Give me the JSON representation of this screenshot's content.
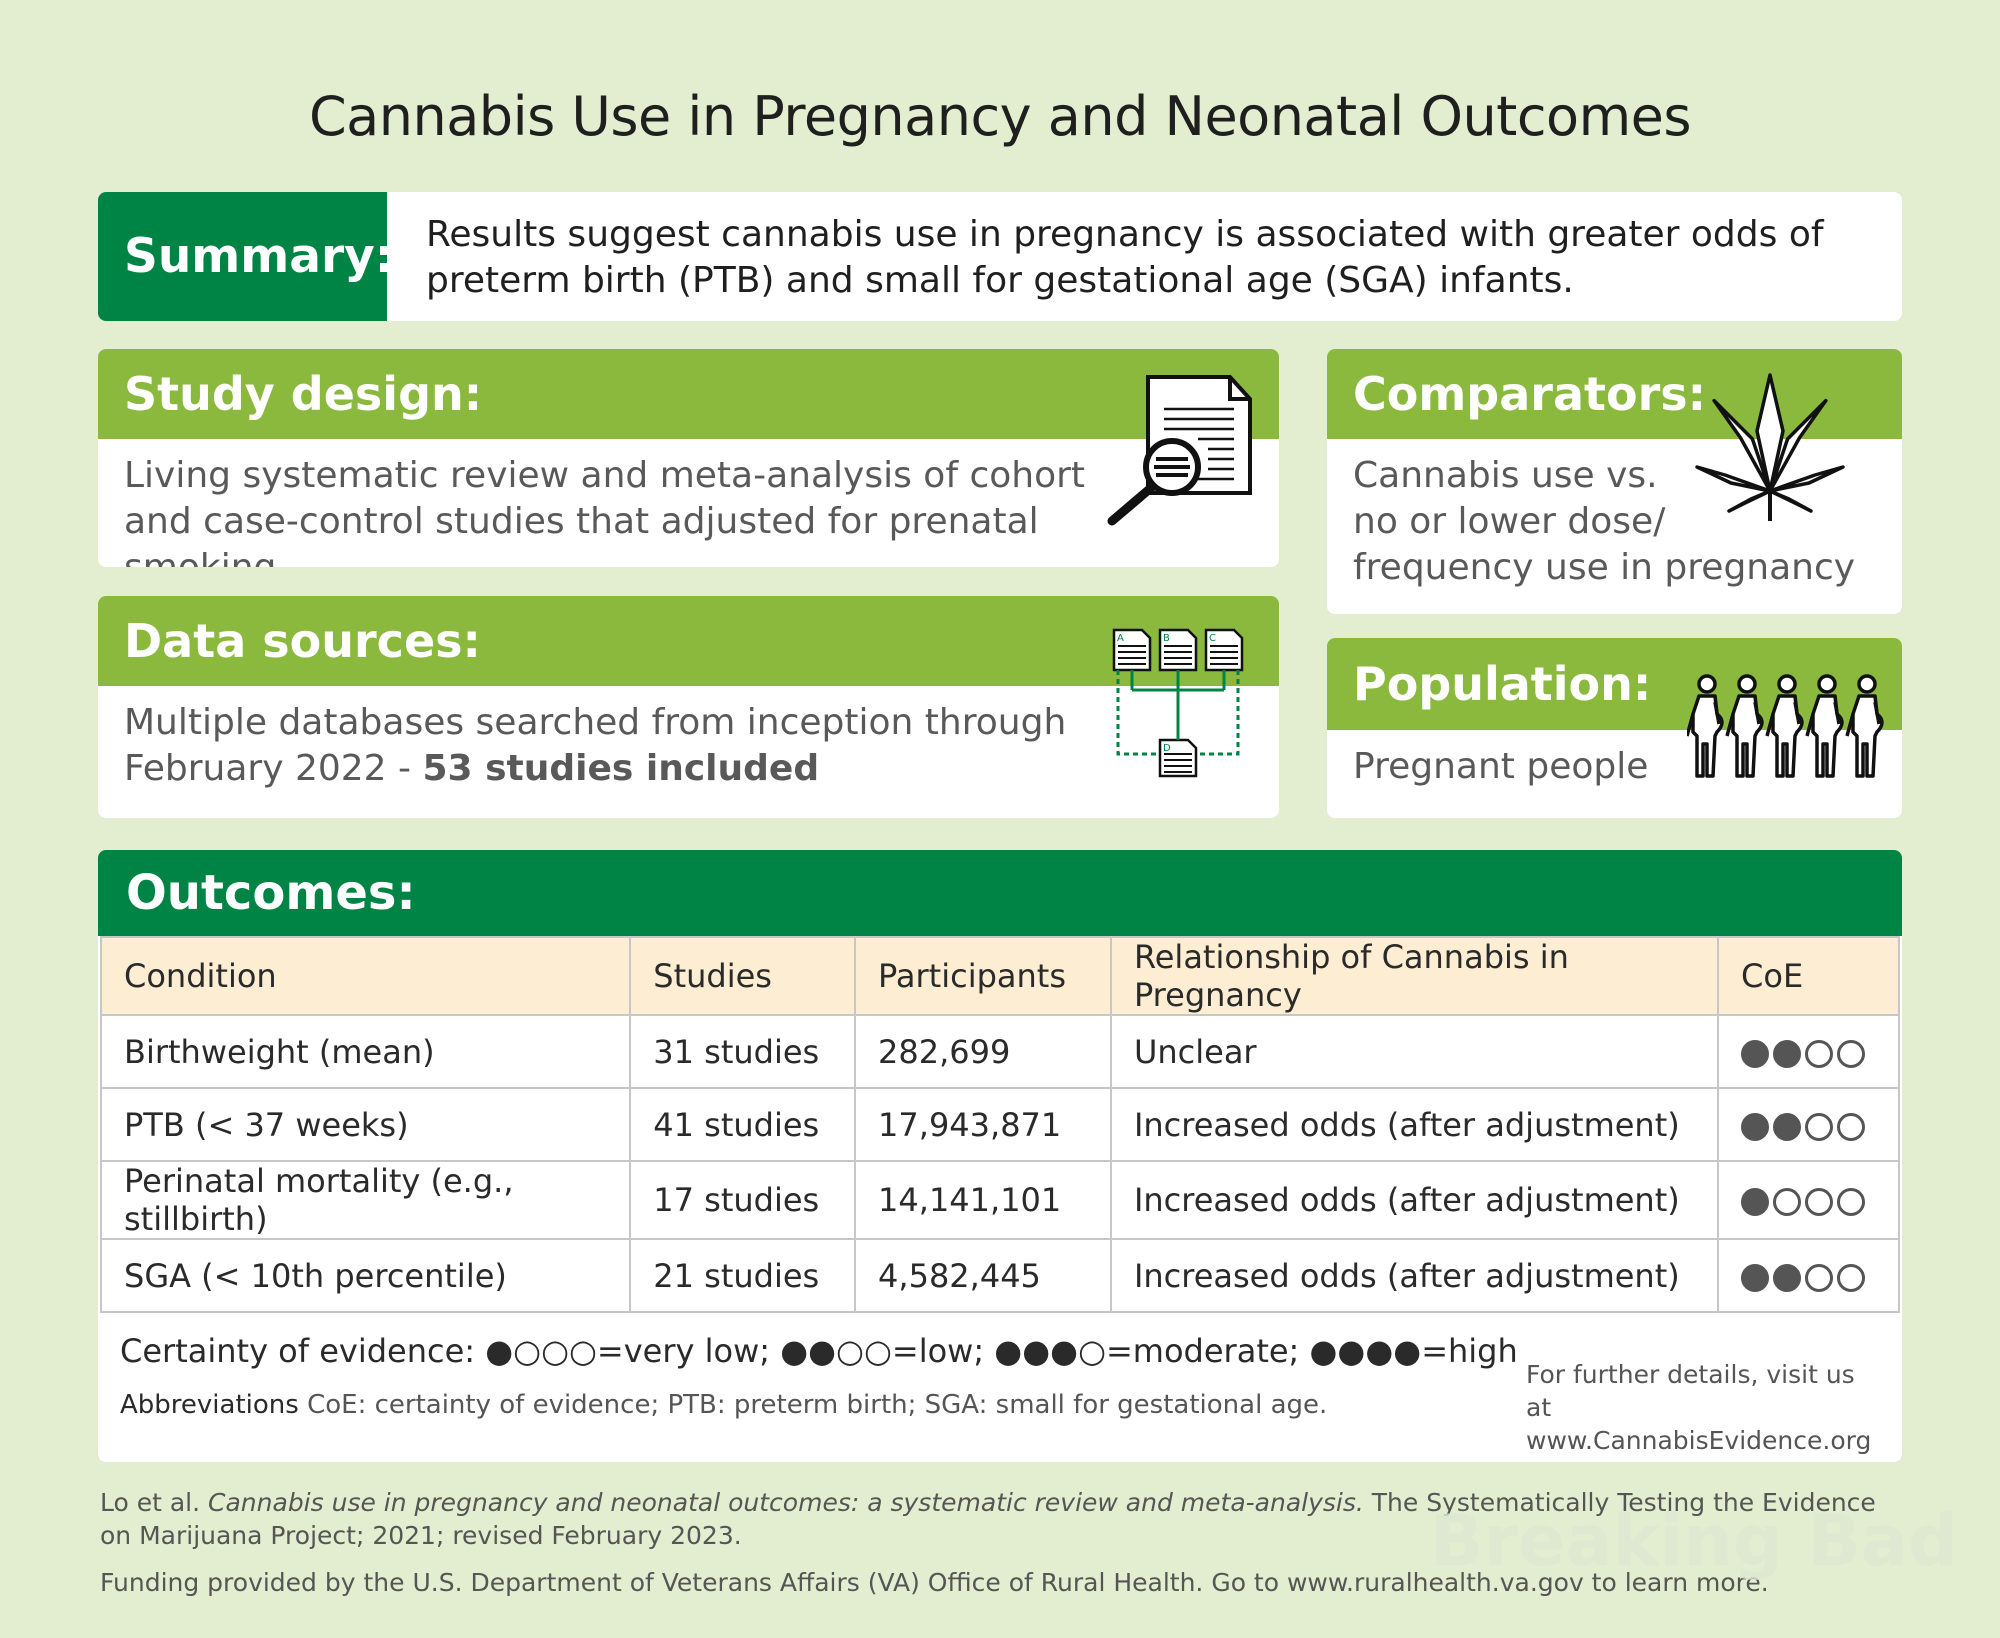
{
  "title": "Cannabis Use in Pregnancy and Neonatal Outcomes",
  "summary": {
    "label": "Summary:",
    "text": "Results suggest cannabis use in pregnancy is associated with greater odds of preterm birth (PTB) and small for gestational age (SGA) infants."
  },
  "study_design": {
    "label": "Study design:",
    "text": "Living systematic review and meta-analysis of cohort and case-control studies that adjusted for prenatal smoking",
    "icon": "document-magnifier-icon"
  },
  "comparators": {
    "label": "Comparators:",
    "line1": "Cannabis use vs.",
    "line2": "no or lower dose/",
    "line3": "frequency use in pregnancy",
    "icon": "cannabis-leaf-icon"
  },
  "data_sources": {
    "label": "Data sources:",
    "text_line1": "Multiple databases searched from inception through",
    "text_line2_plain": "February 2022 - ",
    "text_line2_bold": "53 studies included",
    "icon": "database-documents-icon",
    "doc_letters": [
      "A",
      "B",
      "C",
      "D"
    ]
  },
  "population": {
    "label": "Population:",
    "text": "Pregnant people",
    "icon": "pregnant-people-icon"
  },
  "outcomes": {
    "label": "Outcomes:",
    "headers": [
      "Condition",
      "Studies",
      "Participants",
      "Relationship of Cannabis in Pregnancy",
      "CoE"
    ],
    "rows": [
      {
        "condition": "Birthweight (mean)",
        "studies": "31 studies",
        "participants": "282,699",
        "relationship": "Unclear",
        "coe": 2
      },
      {
        "condition": "PTB (< 37 weeks)",
        "studies": "41 studies",
        "participants": "17,943,871",
        "relationship": "Increased odds (after adjustment)",
        "coe": 2
      },
      {
        "condition": "Perinatal mortality (e.g., stillbirth)",
        "studies": "17 studies",
        "participants": "14,141,101",
        "relationship": "Increased odds (after adjustment)",
        "coe": 1
      },
      {
        "condition": "SGA (< 10th percentile)",
        "studies": "21 studies",
        "participants": "4,582,445",
        "relationship": "Increased odds (after adjustment)",
        "coe": 2
      }
    ],
    "legend": "Certainty of evidence: ●○○○=very low; ●●○○=low; ●●●○=moderate; ●●●●=high",
    "abbrev_label": "Abbreviations",
    "abbrev_text": " CoE: certainty of evidence; PTB: preterm birth; SGA: small for gestational age.",
    "further_line1": "For further details, visit us at",
    "further_line2": "www.CannabisEvidence.org"
  },
  "footer": {
    "citation_author": "Lo et al. ",
    "citation_title": "Cannabis use in pregnancy and neonatal outcomes: a systematic review and meta-analysis.",
    "citation_rest": " The Systematically Testing the Evidence on Marijuana Project; 2021; revised February 2023.",
    "funding": "Funding provided by the U.S. Department of Veterans Affairs (VA) Office of Rural Health. Go to www.ruralhealth.va.gov to learn more.",
    "watermark": "Breaking Bad"
  },
  "colors": {
    "background": "#e3edcf",
    "dark_green": "#008445",
    "light_green": "#8ab93e",
    "table_header": "#fcedd3"
  }
}
